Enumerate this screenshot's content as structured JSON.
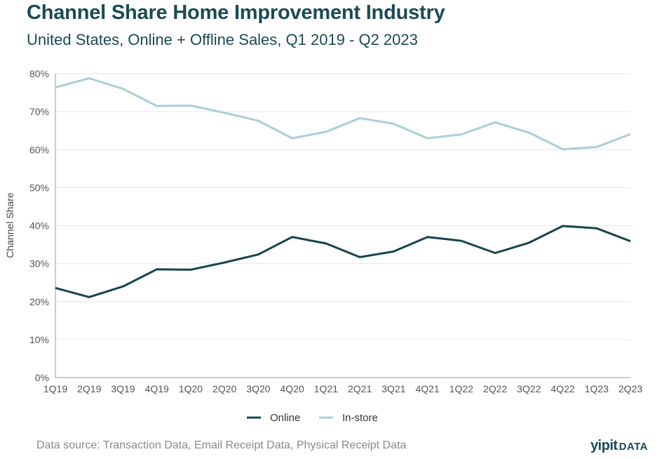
{
  "title": "Channel Share Home Improvement Industry",
  "subtitle": "United States, Online + Offline Sales, Q1 2019 - Q2 2023",
  "source": "Data source: Transaction Data, Email Receipt Data, Physical Receipt Data",
  "brand": {
    "name": "yipit",
    "suffix": "DATA"
  },
  "colors": {
    "online": "#17444f",
    "instore": "#a9cfd9",
    "grid": "#e6e6e6",
    "axis": "#999999"
  },
  "chart_data": {
    "type": "line",
    "title": "Channel Share Home Improvement Industry",
    "subtitle": "United States, Online + Offline Sales, Q1 2019 - Q2 2023",
    "xlabel": "",
    "ylabel": "Channel Share",
    "ylim": [
      0,
      80
    ],
    "yticks": [
      0,
      10,
      20,
      30,
      40,
      50,
      60,
      70,
      80
    ],
    "ytick_labels": [
      "0%",
      "10%",
      "20%",
      "30%",
      "40%",
      "50%",
      "60%",
      "70%",
      "80%"
    ],
    "grid": true,
    "legend_position": "bottom-center",
    "categories": [
      "1Q19",
      "2Q19",
      "3Q19",
      "4Q19",
      "1Q20",
      "2Q20",
      "3Q20",
      "4Q20",
      "1Q21",
      "2Q21",
      "3Q21",
      "4Q21",
      "1Q22",
      "2Q22",
      "3Q22",
      "4Q22",
      "1Q23",
      "2Q23"
    ],
    "series": [
      {
        "name": "Online",
        "values": [
          23.6,
          21.2,
          24.0,
          28.5,
          28.4,
          30.3,
          32.4,
          37.0,
          35.3,
          31.7,
          33.2,
          37.0,
          36.0,
          32.8,
          35.5,
          39.9,
          39.3,
          35.9
        ]
      },
      {
        "name": "In-store",
        "values": [
          76.4,
          78.8,
          76.0,
          71.5,
          71.6,
          69.7,
          67.6,
          63.0,
          64.7,
          68.3,
          66.8,
          63.0,
          64.0,
          67.2,
          64.5,
          60.1,
          60.7,
          64.1
        ]
      }
    ]
  }
}
